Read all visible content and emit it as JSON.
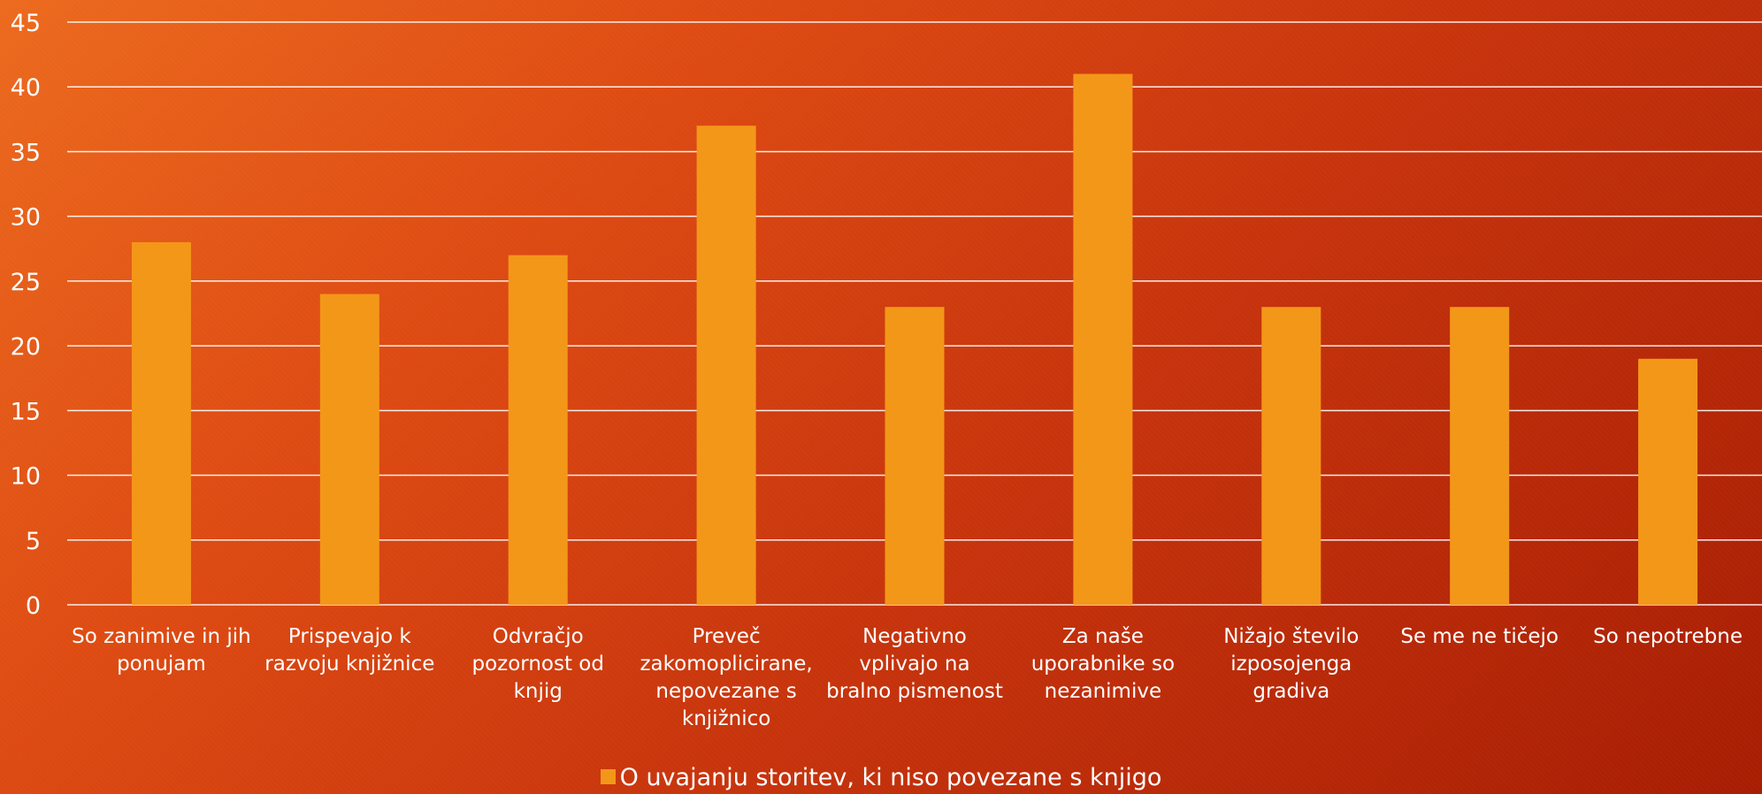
{
  "chart_data": {
    "type": "bar",
    "categories": [
      [
        "So zanimive in jih",
        "ponujam"
      ],
      [
        "Prispevajo k",
        "razvoju knjižnice"
      ],
      [
        "Odvračjo",
        "pozornost od",
        "knjig"
      ],
      [
        "Preveč",
        "zakomoplicirane,",
        "nepovezane s",
        "knjižnico"
      ],
      [
        "Negativno",
        "vplivajo na",
        "bralno pismenost"
      ],
      [
        "Za naše",
        "uporabnike so",
        "nezanimive"
      ],
      [
        "Nižajo število",
        "izposojenga",
        "gradiva"
      ],
      [
        "Se me ne tičejo"
      ],
      [
        "So nepotrebne"
      ]
    ],
    "series": [
      {
        "name": "O uvajanju storitev, ki niso povezane s knjigo",
        "values": [
          28,
          24,
          27,
          37,
          23,
          41,
          23,
          23,
          19
        ],
        "color": "#f39719"
      }
    ],
    "ylim": [
      0,
      45
    ],
    "yticks": [
      0,
      5,
      10,
      15,
      20,
      25,
      30,
      35,
      40,
      45
    ],
    "grid": true,
    "legend_position": "bottom",
    "gridline_color": "#ffffff"
  }
}
